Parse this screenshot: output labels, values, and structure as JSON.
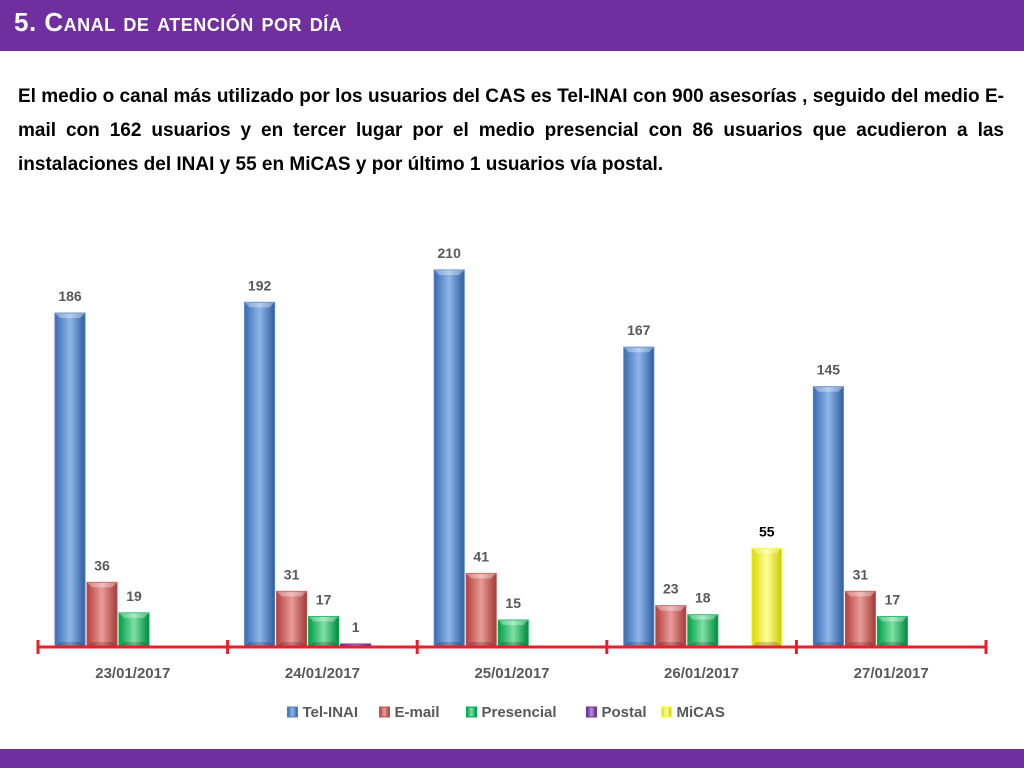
{
  "slide": {
    "title": "5. Canal de atención por día",
    "paragraph": "El medio o canal más utilizado por los usuarios del CAS es Tel-INAI con 900 asesorías , seguido del medio E-mail con 162 usuarios y en tercer lugar por el medio presencial con 86 usuarios que acudieron a las instalaciones del INAI y 55 en MiCAS y por último 1 usuarios vía postal."
  },
  "colors": {
    "accent_purple": "#6f2f9f",
    "axis_red": "#e8202a",
    "label_text": "#595959"
  },
  "chart_data": {
    "type": "bar",
    "style": "3d clustered column",
    "categories": [
      "23/01/2017",
      "24/01/2017",
      "25/01/2017",
      "26/01/2017",
      "27/01/2017"
    ],
    "series": [
      {
        "name": "Tel-INAI",
        "color": "#4f81bd",
        "values": [
          186,
          192,
          210,
          167,
          145
        ]
      },
      {
        "name": "E-mail",
        "color": "#c0504d",
        "values": [
          36,
          31,
          41,
          23,
          31
        ]
      },
      {
        "name": "Presencial",
        "color": "#00b050",
        "values": [
          19,
          17,
          15,
          18,
          17
        ]
      },
      {
        "name": "Postal",
        "color": "#7030a0",
        "values": [
          null,
          1,
          null,
          null,
          null
        ]
      },
      {
        "name": "MiCAS",
        "color": "#ffff00",
        "values": [
          null,
          null,
          null,
          55,
          null
        ]
      }
    ],
    "ylim": [
      0,
      210
    ],
    "grid": false,
    "legend": "bottom"
  }
}
